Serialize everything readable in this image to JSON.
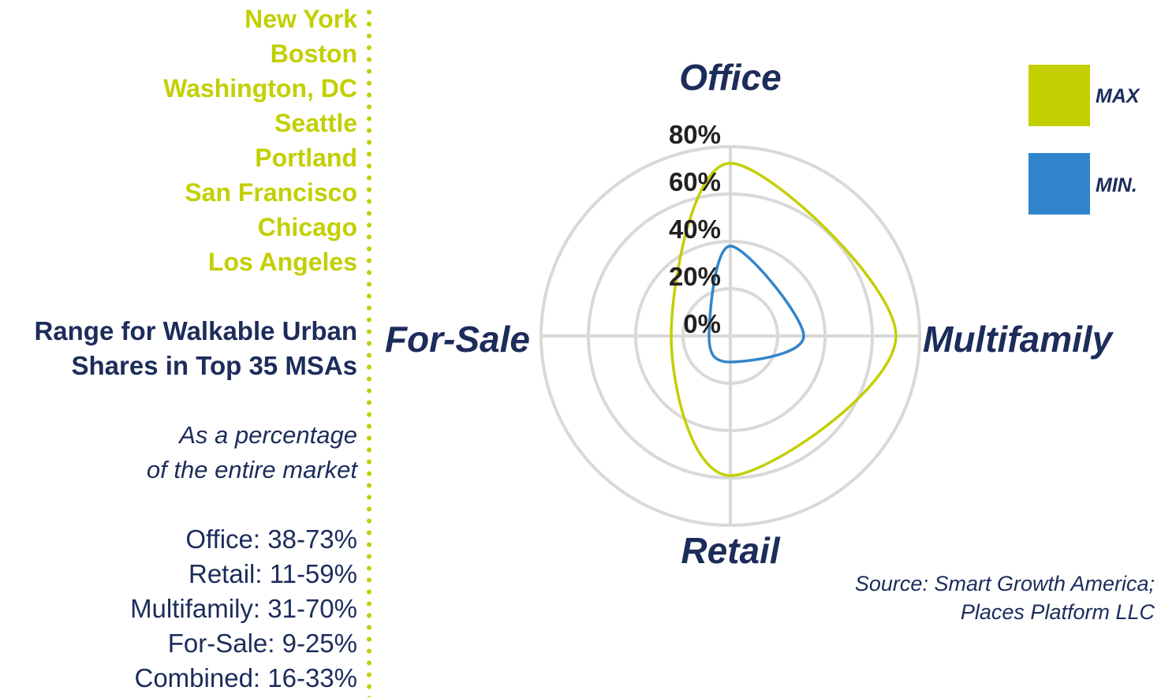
{
  "cities": [
    "New York",
    "Boston",
    "Washington, DC",
    "Seattle",
    "Portland",
    "San Francisco",
    "Chicago",
    "Los Angeles"
  ],
  "range_title_line1": "Range for Walkable Urban",
  "range_title_line2": "Shares in Top 35 MSAs",
  "subtitle_line1": "As a percentage",
  "subtitle_line2": "of the entire market",
  "ranges": [
    "Office: 38-73%",
    "Retail: 11-59%",
    "Multifamily: 31-70%",
    "For-Sale: 9-25%",
    "Combined: 16-33%"
  ],
  "source_line1": "Source: Smart Growth America;",
  "source_line2": "Places Platform LLC",
  "legend": {
    "max_label": "MAX",
    "min_label": "MIN.",
    "max_color": "#c3cf00",
    "min_color": "#3185cc"
  },
  "colors": {
    "navy": "#1c2c5b",
    "green": "#c3cf00",
    "blue": "#3185cc",
    "grid": "#d9d9d9"
  },
  "chart_data": {
    "type": "radar",
    "axes": [
      "Office",
      "Multifamily",
      "Retail",
      "For-Sale"
    ],
    "radial_ticks": [
      "0%",
      "20%",
      "40%",
      "60%",
      "80%"
    ],
    "radial_max": 80,
    "series": [
      {
        "name": "MAX",
        "values": [
          73,
          70,
          59,
          25
        ],
        "color": "#c3cf00"
      },
      {
        "name": "MIN.",
        "values": [
          38,
          31,
          11,
          9
        ],
        "color": "#3185cc"
      }
    ]
  }
}
